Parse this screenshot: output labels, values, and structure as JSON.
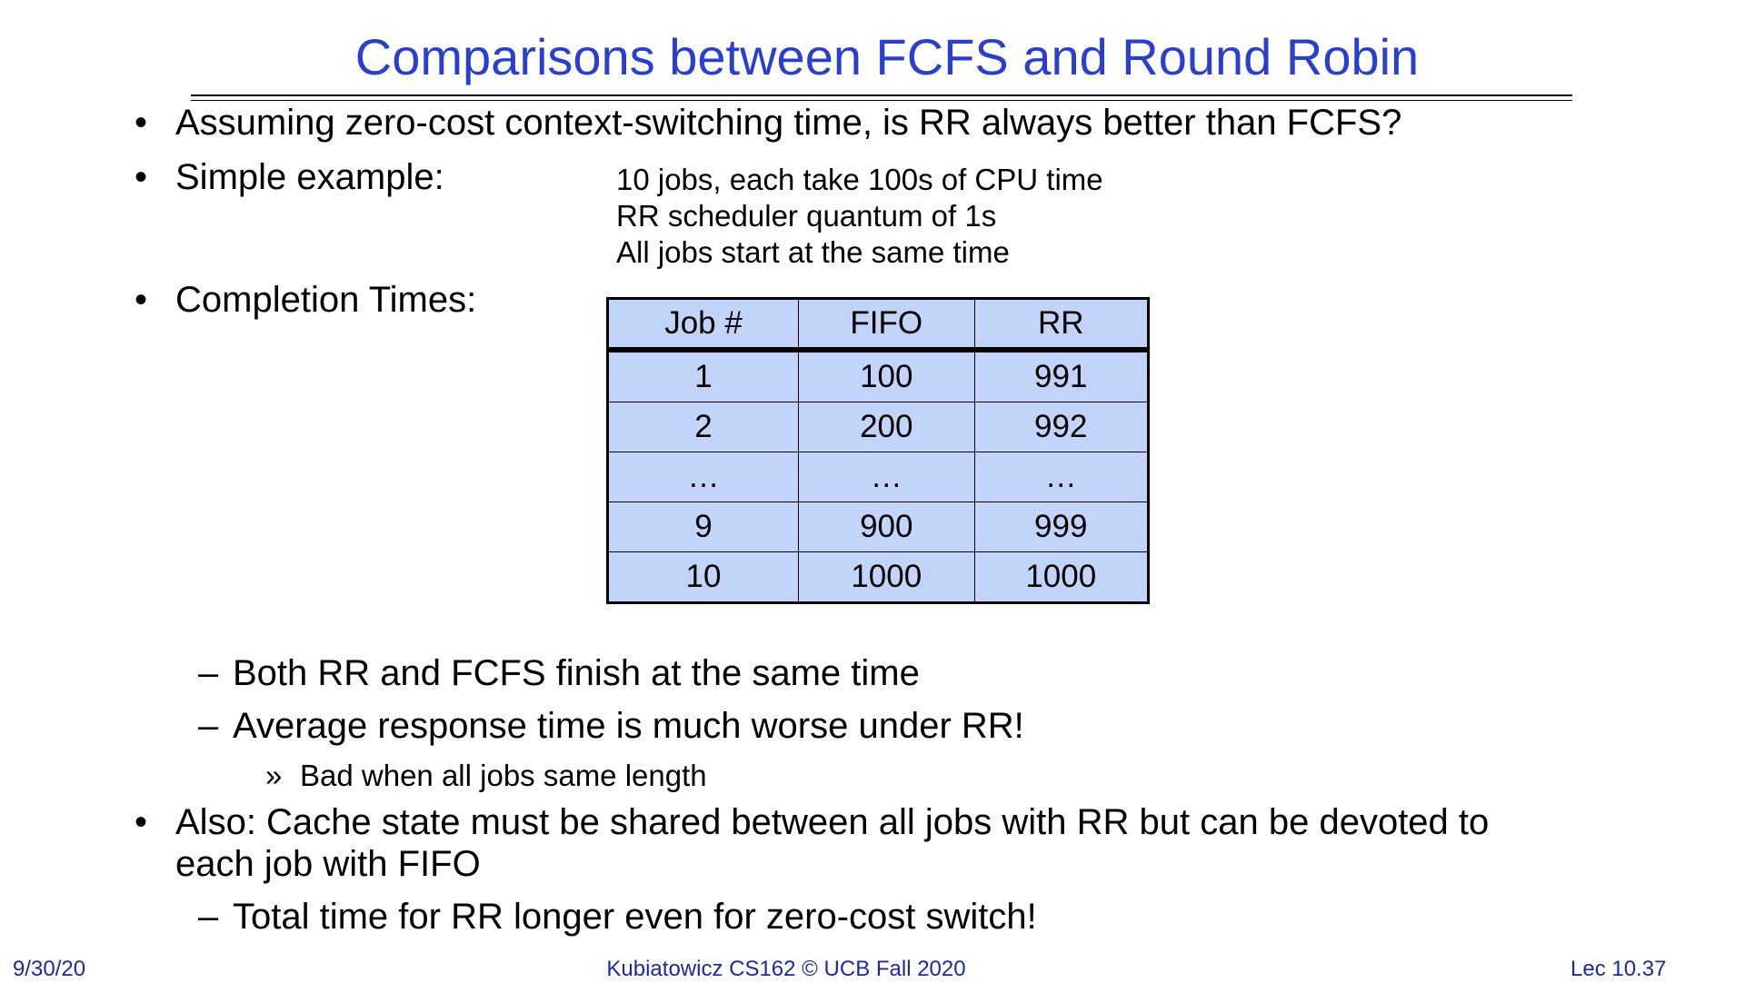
{
  "slide": {
    "title": "Comparisons between FCFS and Round Robin",
    "bullet_dot": "•",
    "dash": "–",
    "raquo": "»",
    "bullet1": "Assuming zero-cost context-switching time, is RR always better than FCFS?",
    "bullet2_label": "Simple example:",
    "example_lines": [
      "10 jobs, each take 100s of CPU time",
      "RR scheduler quantum of 1s",
      "All jobs start at the same time"
    ],
    "bullet3_label": "Completion Times:",
    "table": {
      "headers": [
        "Job #",
        "FIFO",
        "RR"
      ],
      "rows": [
        [
          "1",
          "100",
          "991"
        ],
        [
          "2",
          "200",
          "992"
        ],
        [
          "…",
          "…",
          "…"
        ],
        [
          "9",
          "900",
          "999"
        ],
        [
          "10",
          "1000",
          "1000"
        ]
      ]
    },
    "sub1": "Both RR and FCFS finish at the same time",
    "sub2": "Average response time is much worse under RR!",
    "subsub1": "Bad when all jobs same length",
    "bullet4_line1": "Also: Cache state must be shared between all jobs with RR but can be devoted to",
    "bullet4_line2": "each job with FIFO",
    "sub3": "Total time for RR longer even for zero-cost switch!"
  },
  "footer": {
    "date": "9/30/20",
    "center": "Kubiatowicz CS162 © UCB Fall 2020",
    "page": "Lec 10.37"
  }
}
